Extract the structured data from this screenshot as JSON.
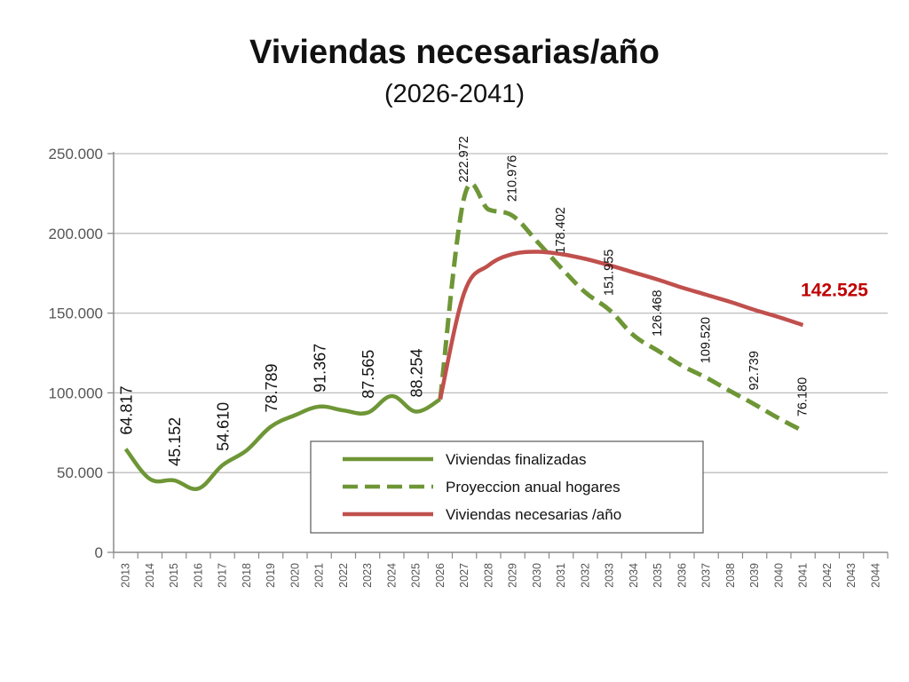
{
  "chart_data": {
    "type": "line",
    "title": "Viviendas necesarias/año",
    "subtitle": "(2026-2041)",
    "x_categories": [
      "2013",
      "2014",
      "2015",
      "2016",
      "2017",
      "2018",
      "2019",
      "2020",
      "2021",
      "2022",
      "2023",
      "2024",
      "2025",
      "2026",
      "2027",
      "2028",
      "2029",
      "2030",
      "2031",
      "2032",
      "2033",
      "2034",
      "2035",
      "2036",
      "2037",
      "2038",
      "2039",
      "2040",
      "2041",
      "2042",
      "2043",
      "2044"
    ],
    "ylim": [
      0,
      250000
    ],
    "y_ticks": [
      {
        "value": 0,
        "label": "0"
      },
      {
        "value": 50000,
        "label": "50.000"
      },
      {
        "value": 100000,
        "label": "100.000"
      },
      {
        "value": 150000,
        "label": "150.000"
      },
      {
        "value": 200000,
        "label": "200.000"
      },
      {
        "value": 250000,
        "label": "250.000"
      }
    ],
    "grid": true,
    "legend_position": "bottom-center",
    "series": [
      {
        "name": "Viviendas finalizadas",
        "style": "solid",
        "color": "#6e9636",
        "x": [
          "2013",
          "2014",
          "2015",
          "2016",
          "2017",
          "2018",
          "2019",
          "2020",
          "2021",
          "2022",
          "2023",
          "2024",
          "2025",
          "2026"
        ],
        "values": [
          64817,
          46000,
          45152,
          40000,
          54610,
          64000,
          78789,
          86000,
          91367,
          89000,
          87565,
          98000,
          88254,
          96000
        ]
      },
      {
        "name": "Proyeccion anual hogares",
        "style": "dashed",
        "color": "#6e9636",
        "x": [
          "2026",
          "2027",
          "2028",
          "2029",
          "2030",
          "2031",
          "2032",
          "2033",
          "2034",
          "2035",
          "2036",
          "2037",
          "2038",
          "2039",
          "2040",
          "2041"
        ],
        "values": [
          96000,
          222972,
          215000,
          210976,
          195000,
          178402,
          163000,
          151955,
          136000,
          126468,
          117000,
          109520,
          101000,
          92739,
          84000,
          76180
        ]
      },
      {
        "name": "Viviendas necesarias /año",
        "style": "solid",
        "color": "#c0504d",
        "x": [
          "2026",
          "2027",
          "2028",
          "2029",
          "2030",
          "2031",
          "2032",
          "2033",
          "2034",
          "2035",
          "2036",
          "2037",
          "2038",
          "2039",
          "2040",
          "2041"
        ],
        "values": [
          96000,
          163000,
          180000,
          187000,
          188500,
          187000,
          184000,
          180000,
          175500,
          171000,
          166000,
          161500,
          157000,
          152000,
          147500,
          142525
        ]
      }
    ],
    "data_labels": [
      {
        "x": "2013",
        "text": "64.817"
      },
      {
        "x": "2015",
        "text": "45.152"
      },
      {
        "x": "2017",
        "text": "54.610"
      },
      {
        "x": "2019",
        "text": "78.789"
      },
      {
        "x": "2021",
        "text": "91.367"
      },
      {
        "x": "2023",
        "text": "87.565"
      },
      {
        "x": "2025",
        "text": "88.254"
      },
      {
        "x": "2027",
        "text": "222.972"
      },
      {
        "x": "2029",
        "text": "210.976"
      },
      {
        "x": "2031",
        "text": "178.402"
      },
      {
        "x": "2033",
        "text": "151.955"
      },
      {
        "x": "2035",
        "text": "126.468"
      },
      {
        "x": "2037",
        "text": "109.520"
      },
      {
        "x": "2039",
        "text": "92.739"
      },
      {
        "x": "2041",
        "text": "76.180"
      }
    ],
    "end_label": {
      "x": "2041",
      "text": "142.525",
      "color": "#c00000"
    }
  }
}
